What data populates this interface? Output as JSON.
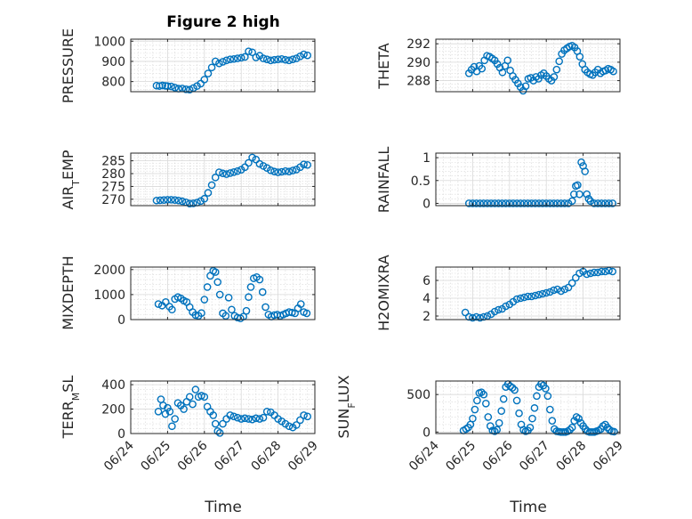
{
  "figure_title": "Figure 2 high",
  "chart_data": [
    {
      "type": "scatter",
      "title": "Figure 2 high",
      "ylabel": "PRESSURE",
      "ylim": [
        750,
        1010
      ],
      "yticks": [
        800,
        900,
        1000
      ],
      "xlim": [
        "06/24",
        "06/29"
      ],
      "xticks": [
        "06/24",
        "06/25",
        "06/26",
        "06/27",
        "06/28",
        "06/29"
      ],
      "x": [
        24.7,
        24.78,
        24.86,
        24.94,
        25.0,
        25.1,
        25.2,
        25.3,
        25.4,
        25.5,
        25.6,
        25.7,
        25.8,
        25.9,
        26.0,
        26.1,
        26.2,
        26.3,
        26.4,
        26.5,
        26.6,
        26.7,
        26.8,
        26.9,
        27.0,
        27.1,
        27.2,
        27.3,
        27.4,
        27.5,
        27.6,
        27.7,
        27.8,
        27.9,
        28.0,
        28.1,
        28.2,
        28.3,
        28.4,
        28.5,
        28.6,
        28.7,
        28.8
      ],
      "y": [
        780,
        778,
        781,
        779,
        778,
        776,
        770,
        765,
        766,
        762,
        760,
        768,
        778,
        790,
        810,
        840,
        870,
        900,
        890,
        898,
        905,
        910,
        912,
        915,
        918,
        922,
        950,
        945,
        920,
        928,
        915,
        910,
        905,
        908,
        910,
        912,
        908,
        905,
        910,
        915,
        925,
        935,
        930
      ]
    },
    {
      "type": "scatter",
      "ylabel": "THETA",
      "ylim": [
        286.8,
        292.5
      ],
      "yticks": [
        288,
        290,
        292
      ],
      "xlim": [
        "06/24",
        "06/29"
      ],
      "xticks": [
        "06/24",
        "06/25",
        "06/26",
        "06/27",
        "06/28",
        "06/29"
      ],
      "x": [
        24.9,
        24.97,
        25.04,
        25.11,
        25.18,
        25.25,
        25.32,
        25.39,
        25.46,
        25.53,
        25.6,
        25.67,
        25.74,
        25.81,
        25.88,
        25.95,
        26.02,
        26.09,
        26.16,
        26.23,
        26.3,
        26.37,
        26.44,
        26.51,
        26.58,
        26.65,
        26.72,
        26.79,
        26.86,
        26.93,
        27.0,
        27.07,
        27.14,
        27.21,
        27.28,
        27.35,
        27.42,
        27.49,
        27.56,
        27.63,
        27.7,
        27.77,
        27.84,
        27.91,
        27.98,
        28.05,
        28.12,
        28.19,
        28.26,
        28.33,
        28.4,
        28.47,
        28.54,
        28.61,
        28.68,
        28.75,
        28.82
      ],
      "y": [
        288.8,
        289.2,
        289.5,
        289.0,
        289.6,
        289.3,
        290.2,
        290.7,
        290.6,
        290.4,
        290.2,
        289.8,
        289.4,
        288.9,
        289.6,
        290.2,
        289.1,
        288.5,
        288.1,
        287.7,
        287.3,
        286.9,
        287.4,
        288.2,
        288.3,
        288.0,
        288.4,
        288.2,
        288.6,
        288.8,
        288.5,
        288.2,
        288.0,
        288.4,
        289.2,
        290.1,
        290.9,
        291.3,
        291.5,
        291.7,
        291.8,
        291.6,
        291.2,
        290.6,
        289.8,
        289.2,
        288.9,
        288.7,
        288.6,
        288.9,
        289.2,
        288.8,
        289.0,
        289.1,
        289.3,
        289.2,
        289.0
      ]
    },
    {
      "type": "scatter",
      "ylabel": "AIR_TEMP",
      "ylim": [
        267.5,
        288
      ],
      "yticks": [
        270,
        275,
        280,
        285
      ],
      "xlim": [
        "06/24",
        "06/29"
      ],
      "xticks": [
        "06/24",
        "06/25",
        "06/26",
        "06/27",
        "06/28",
        "06/29"
      ],
      "x": [
        24.7,
        24.8,
        24.9,
        25.0,
        25.1,
        25.2,
        25.3,
        25.4,
        25.5,
        25.6,
        25.7,
        25.8,
        25.9,
        26.0,
        26.1,
        26.2,
        26.3,
        26.4,
        26.5,
        26.6,
        26.7,
        26.8,
        26.9,
        27.0,
        27.1,
        27.2,
        27.3,
        27.4,
        27.5,
        27.6,
        27.7,
        27.8,
        27.9,
        28.0,
        28.1,
        28.2,
        28.3,
        28.4,
        28.5,
        28.6,
        28.7,
        28.8
      ],
      "y": [
        269.5,
        269.6,
        269.7,
        269.8,
        269.8,
        269.7,
        269.5,
        269.2,
        268.8,
        268.3,
        268.4,
        268.7,
        269.3,
        270.2,
        272.5,
        275.5,
        278.5,
        280.5,
        280.1,
        279.8,
        280.2,
        280.6,
        281.0,
        281.5,
        282.5,
        284.2,
        286.3,
        285.5,
        283.8,
        283.0,
        282.2,
        281.3,
        280.8,
        280.5,
        280.7,
        281.0,
        280.8,
        281.2,
        281.6,
        282.5,
        283.6,
        283.4
      ]
    },
    {
      "type": "scatter",
      "ylabel": "RAINFALL",
      "ylim": [
        -0.05,
        1.1
      ],
      "yticks": [
        0,
        0.5,
        1
      ],
      "xlim": [
        "06/24",
        "06/29"
      ],
      "xticks": [
        "06/24",
        "06/25",
        "06/26",
        "06/27",
        "06/28",
        "06/29"
      ],
      "x": [
        24.9,
        25.0,
        25.1,
        25.2,
        25.3,
        25.4,
        25.5,
        25.6,
        25.7,
        25.8,
        25.9,
        26.0,
        26.1,
        26.2,
        26.3,
        26.4,
        26.5,
        26.6,
        26.7,
        26.8,
        26.9,
        27.0,
        27.1,
        27.2,
        27.3,
        27.4,
        27.5,
        27.6,
        27.7,
        27.75,
        27.8,
        27.85,
        27.9,
        27.95,
        28.0,
        28.05,
        28.1,
        28.15,
        28.2,
        28.3,
        28.4,
        28.5,
        28.6,
        28.7,
        28.8
      ],
      "y": [
        0,
        0,
        0,
        0,
        0,
        0,
        0,
        0,
        0,
        0,
        0,
        0,
        0,
        0,
        0,
        0,
        0,
        0,
        0,
        0,
        0,
        0,
        0,
        0,
        0,
        0,
        0,
        0,
        0.05,
        0.2,
        0.38,
        0.4,
        0.2,
        0.9,
        0.82,
        0.7,
        0.2,
        0.1,
        0.05,
        0,
        0,
        0,
        0,
        0,
        0
      ]
    },
    {
      "type": "scatter",
      "ylabel": "MIXDEPTH",
      "ylim": [
        0,
        2100
      ],
      "yticks": [
        0,
        1000,
        2000
      ],
      "xlim": [
        "06/24",
        "06/29"
      ],
      "xticks": [
        "06/24",
        "06/25",
        "06/26",
        "06/27",
        "06/28",
        "06/29"
      ],
      "x": [
        24.75,
        24.85,
        24.95,
        25.05,
        25.12,
        25.2,
        25.28,
        25.36,
        25.44,
        25.52,
        25.6,
        25.68,
        25.76,
        25.84,
        25.92,
        26.0,
        26.08,
        26.16,
        26.24,
        26.3,
        26.36,
        26.42,
        26.5,
        26.58,
        26.66,
        26.74,
        26.82,
        26.9,
        26.98,
        27.06,
        27.14,
        27.2,
        27.26,
        27.34,
        27.42,
        27.5,
        27.58,
        27.66,
        27.74,
        27.82,
        27.9,
        27.98,
        28.06,
        28.14,
        28.22,
        28.3,
        28.38,
        28.46,
        28.54,
        28.62,
        28.7,
        28.78
      ],
      "y": [
        620,
        560,
        700,
        520,
        400,
        820,
        900,
        850,
        760,
        700,
        500,
        300,
        180,
        150,
        260,
        800,
        1300,
        1750,
        1950,
        1900,
        1500,
        1000,
        250,
        150,
        880,
        400,
        150,
        80,
        50,
        120,
        350,
        900,
        1300,
        1650,
        1700,
        1600,
        1100,
        500,
        200,
        120,
        180,
        200,
        150,
        200,
        250,
        300,
        280,
        250,
        450,
        620,
        300,
        250
      ]
    },
    {
      "type": "scatter",
      "ylabel": "H2OMIXRA",
      "ylim": [
        1.6,
        7.5
      ],
      "yticks": [
        2,
        4,
        6
      ],
      "xlim": [
        "06/24",
        "06/29"
      ],
      "xticks": [
        "06/24",
        "06/25",
        "06/26",
        "06/27",
        "06/28",
        "06/29"
      ],
      "x": [
        24.8,
        24.9,
        25.0,
        25.1,
        25.2,
        25.3,
        25.4,
        25.5,
        25.6,
        25.7,
        25.8,
        25.9,
        26.0,
        26.1,
        26.2,
        26.3,
        26.4,
        26.5,
        26.6,
        26.7,
        26.8,
        26.9,
        27.0,
        27.1,
        27.2,
        27.3,
        27.4,
        27.5,
        27.6,
        27.7,
        27.8,
        27.9,
        28.0,
        28.1,
        28.2,
        28.3,
        28.4,
        28.5,
        28.6,
        28.7,
        28.8
      ],
      "y": [
        2.4,
        1.9,
        1.8,
        1.9,
        1.8,
        1.9,
        2.0,
        2.2,
        2.5,
        2.7,
        2.8,
        3.1,
        3.3,
        3.6,
        3.9,
        4.0,
        4.1,
        4.2,
        4.2,
        4.3,
        4.4,
        4.5,
        4.6,
        4.7,
        4.9,
        5.0,
        4.8,
        5.0,
        5.2,
        5.7,
        6.3,
        6.8,
        7.0,
        6.7,
        6.8,
        6.9,
        6.9,
        7.0,
        7.0,
        7.1,
        7.0
      ]
    },
    {
      "type": "scatter",
      "ylabel": "TERR_MSL",
      "ylim": [
        0,
        430
      ],
      "yticks": [
        0,
        200,
        400
      ],
      "xlim": [
        "06/24",
        "06/29"
      ],
      "xticks": [
        "06/24",
        "06/25",
        "06/26",
        "06/27",
        "06/28",
        "06/29"
      ],
      "x": [
        24.75,
        24.82,
        24.88,
        24.94,
        25.0,
        25.06,
        25.12,
        25.2,
        25.28,
        25.36,
        25.44,
        25.52,
        25.6,
        25.68,
        25.76,
        25.84,
        25.92,
        26.0,
        26.08,
        26.16,
        26.24,
        26.3,
        26.36,
        26.42,
        26.5,
        26.6,
        26.7,
        26.8,
        26.9,
        27.0,
        27.1,
        27.2,
        27.3,
        27.4,
        27.5,
        27.6,
        27.7,
        27.8,
        27.9,
        28.0,
        28.1,
        28.2,
        28.3,
        28.4,
        28.5,
        28.6,
        28.7,
        28.8
      ],
      "y": [
        180,
        280,
        230,
        160,
        210,
        180,
        60,
        120,
        250,
        230,
        200,
        260,
        300,
        240,
        360,
        300,
        310,
        300,
        220,
        180,
        150,
        80,
        20,
        5,
        80,
        120,
        150,
        140,
        130,
        120,
        125,
        120,
        115,
        125,
        120,
        130,
        180,
        175,
        150,
        120,
        100,
        80,
        60,
        50,
        70,
        110,
        150,
        140
      ]
    },
    {
      "type": "scatter",
      "ylabel": "SUN_FLUX",
      "ylim": [
        -20,
        680
      ],
      "yticks": [
        0,
        500
      ],
      "xlim": [
        "06/24",
        "06/29"
      ],
      "xticks": [
        "06/24",
        "06/25",
        "06/26",
        "06/27",
        "06/28",
        "06/29"
      ],
      "x": [
        24.75,
        24.82,
        24.88,
        24.94,
        25.0,
        25.06,
        25.12,
        25.18,
        25.24,
        25.3,
        25.36,
        25.42,
        25.48,
        25.54,
        25.6,
        25.66,
        25.72,
        25.78,
        25.84,
        25.9,
        25.96,
        26.02,
        26.08,
        26.14,
        26.2,
        26.26,
        26.32,
        26.38,
        26.44,
        26.5,
        26.56,
        26.62,
        26.68,
        26.74,
        26.8,
        26.86,
        26.92,
        26.98,
        27.04,
        27.1,
        27.16,
        27.22,
        27.28,
        27.34,
        27.4,
        27.46,
        27.52,
        27.58,
        27.64,
        27.7,
        27.76,
        27.82,
        27.88,
        27.94,
        28.0,
        28.06,
        28.12,
        28.18,
        28.24,
        28.3,
        28.36,
        28.42,
        28.48,
        28.54,
        28.6,
        28.66,
        28.72,
        28.78,
        28.84
      ],
      "y": [
        20,
        40,
        60,
        100,
        180,
        300,
        420,
        520,
        530,
        500,
        380,
        200,
        80,
        20,
        10,
        30,
        120,
        280,
        440,
        600,
        640,
        610,
        590,
        560,
        420,
        250,
        100,
        30,
        10,
        20,
        60,
        180,
        320,
        480,
        600,
        640,
        620,
        580,
        480,
        300,
        150,
        40,
        10,
        5,
        0,
        0,
        0,
        10,
        30,
        60,
        150,
        200,
        180,
        120,
        80,
        40,
        10,
        0,
        0,
        0,
        10,
        20,
        40,
        80,
        100,
        60,
        30,
        10,
        5
      ]
    }
  ],
  "xlabel": "Time"
}
